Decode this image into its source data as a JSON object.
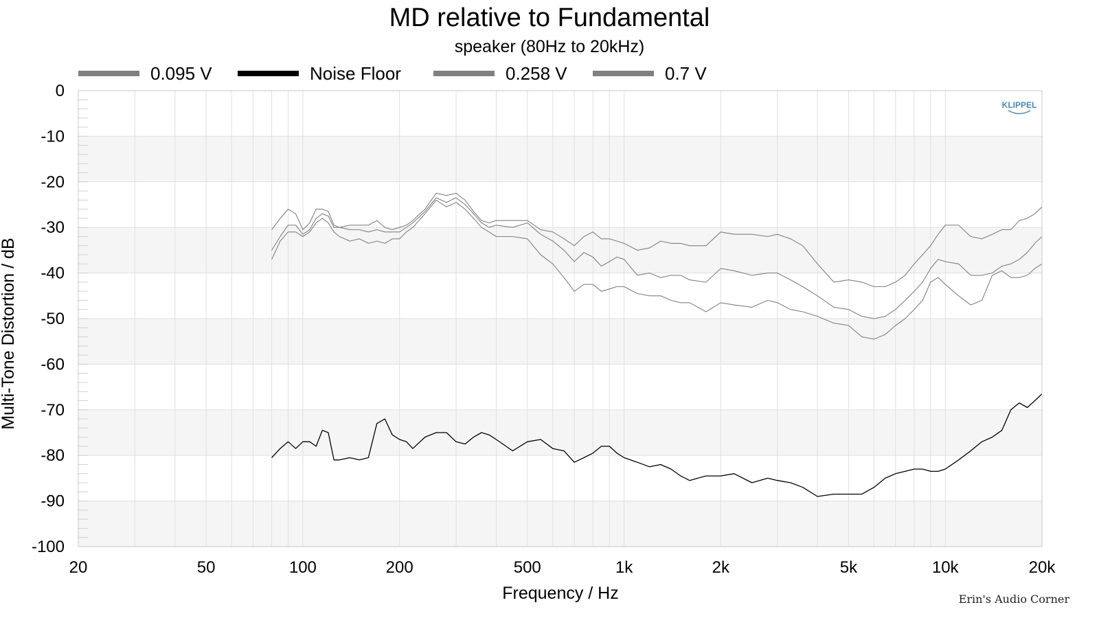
{
  "chart_data": {
    "type": "line",
    "title": "MD relative to Fundamental",
    "subtitle": "speaker (80Hz to 20kHz)",
    "xlabel": "Frequency / Hz",
    "ylabel": "Multi-Tone Distortion / dB",
    "x_scale": "log",
    "xlim": [
      20,
      20000
    ],
    "ylim": [
      -100,
      0
    ],
    "x_ticks": [
      {
        "value": 20,
        "label": "20"
      },
      {
        "value": 50,
        "label": "50"
      },
      {
        "value": 100,
        "label": "100"
      },
      {
        "value": 200,
        "label": "200"
      },
      {
        "value": 500,
        "label": "500"
      },
      {
        "value": 1000,
        "label": "1k"
      },
      {
        "value": 2000,
        "label": "2k"
      },
      {
        "value": 5000,
        "label": "5k"
      },
      {
        "value": 10000,
        "label": "10k"
      },
      {
        "value": 20000,
        "label": "20k"
      }
    ],
    "y_ticks": [
      {
        "value": 0,
        "label": "0"
      },
      {
        "value": -10,
        "label": "-10"
      },
      {
        "value": -20,
        "label": "-20"
      },
      {
        "value": -30,
        "label": "-30"
      },
      {
        "value": -40,
        "label": "-40"
      },
      {
        "value": -50,
        "label": "-50"
      },
      {
        "value": -60,
        "label": "-60"
      },
      {
        "value": -70,
        "label": "-70"
      },
      {
        "value": -80,
        "label": "-80"
      },
      {
        "value": -90,
        "label": "-90"
      },
      {
        "value": -100,
        "label": "-100"
      }
    ],
    "grid": true,
    "legend_position": "top",
    "series": [
      {
        "name": "0.095 V",
        "color": "#808080",
        "x": [
          80,
          85,
          90,
          95,
          100,
          105,
          110,
          115,
          120,
          125,
          130,
          140,
          150,
          160,
          170,
          180,
          190,
          200,
          210,
          220,
          240,
          260,
          280,
          300,
          320,
          340,
          360,
          380,
          400,
          450,
          500,
          550,
          600,
          650,
          700,
          750,
          800,
          850,
          900,
          950,
          1000,
          1100,
          1200,
          1300,
          1400,
          1500,
          1600,
          1800,
          2000,
          2200,
          2500,
          2800,
          3000,
          3300,
          3600,
          4000,
          4500,
          5000,
          5500,
          6000,
          6500,
          7000,
          7500,
          8000,
          8500,
          9000,
          9500,
          10000,
          11000,
          12000,
          13000,
          14000,
          15000,
          16000,
          17000,
          18000,
          19000,
          20000
        ],
        "y": [
          -37,
          -33,
          -31,
          -31,
          -32,
          -31,
          -29,
          -28,
          -29,
          -31,
          -32,
          -33,
          -32.5,
          -33.5,
          -33,
          -33.5,
          -32.5,
          -32.5,
          -31,
          -30,
          -27,
          -24,
          -25.5,
          -24.5,
          -26,
          -28,
          -30,
          -31,
          -32,
          -32,
          -32.5,
          -36,
          -38,
          -41,
          -44,
          -42.5,
          -42.5,
          -44,
          -43.5,
          -43,
          -43,
          -44.5,
          -45,
          -45,
          -46,
          -46.5,
          -46.5,
          -48.5,
          -46.5,
          -47,
          -47.5,
          -46,
          -46.5,
          -48,
          -48.5,
          -49.5,
          -51,
          -51.5,
          -54,
          -54.5,
          -53.5,
          -51.5,
          -50,
          -48,
          -46,
          -42,
          -41,
          -42.5,
          -45,
          -47,
          -46,
          -40.5,
          -39.5,
          -41,
          -41,
          -40.5,
          -39,
          -38
        ]
      },
      {
        "name": "Noise Floor",
        "color": "#000000",
        "x": [
          80,
          85,
          90,
          95,
          100,
          105,
          110,
          115,
          120,
          125,
          130,
          140,
          150,
          160,
          170,
          180,
          190,
          200,
          210,
          220,
          240,
          260,
          280,
          300,
          320,
          340,
          360,
          380,
          400,
          450,
          500,
          550,
          600,
          650,
          700,
          750,
          800,
          850,
          900,
          950,
          1000,
          1100,
          1200,
          1300,
          1400,
          1500,
          1600,
          1800,
          2000,
          2200,
          2500,
          2800,
          3000,
          3300,
          3600,
          4000,
          4500,
          5000,
          5500,
          6000,
          6500,
          7000,
          7500,
          8000,
          8500,
          9000,
          9500,
          10000,
          11000,
          12000,
          13000,
          14000,
          15000,
          16000,
          17000,
          18000,
          19000,
          20000
        ],
        "y": [
          -80.5,
          -78.5,
          -77,
          -78.5,
          -77,
          -77,
          -78,
          -74.5,
          -75,
          -81,
          -81,
          -80.5,
          -81,
          -80.5,
          -73,
          -72,
          -75.5,
          -76.5,
          -77,
          -78.5,
          -76,
          -75,
          -75,
          -77,
          -77.5,
          -76,
          -75,
          -75.5,
          -76.5,
          -79,
          -77,
          -76.5,
          -78.5,
          -79,
          -81.5,
          -80.5,
          -79.5,
          -78,
          -78,
          -79.5,
          -80.5,
          -81.5,
          -82.5,
          -82,
          -83,
          -84.5,
          -85.5,
          -84.5,
          -84.5,
          -84,
          -86,
          -85,
          -85.5,
          -86,
          -87,
          -89,
          -88.5,
          -88.5,
          -88.5,
          -87,
          -85,
          -84,
          -83.5,
          -83,
          -83,
          -83.5,
          -83.5,
          -83,
          -81,
          -79,
          -77,
          -76,
          -74.5,
          -70,
          -68.5,
          -69.5,
          -68,
          -66.5
        ]
      },
      {
        "name": "0.258 V",
        "color": "#808080",
        "x": [
          80,
          85,
          90,
          95,
          100,
          105,
          110,
          115,
          120,
          125,
          130,
          140,
          150,
          160,
          170,
          180,
          190,
          200,
          210,
          220,
          240,
          260,
          280,
          300,
          320,
          340,
          360,
          380,
          400,
          450,
          500,
          550,
          600,
          650,
          700,
          750,
          800,
          850,
          900,
          950,
          1000,
          1100,
          1200,
          1300,
          1400,
          1500,
          1600,
          1800,
          2000,
          2200,
          2500,
          2800,
          3000,
          3300,
          3600,
          4000,
          4500,
          5000,
          5500,
          6000,
          6500,
          7000,
          7500,
          8000,
          8500,
          9000,
          9500,
          10000,
          11000,
          12000,
          13000,
          14000,
          15000,
          16000,
          17000,
          18000,
          19000,
          20000
        ],
        "y": [
          -35,
          -32,
          -29.5,
          -29.5,
          -31.5,
          -30.5,
          -28,
          -27,
          -27.5,
          -30,
          -30,
          -30.5,
          -30.5,
          -31,
          -30.5,
          -31,
          -31,
          -31,
          -30,
          -29,
          -26.5,
          -23.5,
          -24.5,
          -23.5,
          -25,
          -27,
          -29,
          -30,
          -29.5,
          -30,
          -29,
          -31.5,
          -33,
          -35,
          -37.5,
          -35.5,
          -36.5,
          -38.5,
          -37.5,
          -36.5,
          -37,
          -40.5,
          -40,
          -41,
          -40.5,
          -40.5,
          -41.5,
          -42,
          -39,
          -39.5,
          -40.5,
          -40,
          -40,
          -41.5,
          -43,
          -45,
          -47.5,
          -48,
          -49.5,
          -50,
          -49.5,
          -48,
          -46,
          -44,
          -42,
          -39,
          -37,
          -37.5,
          -38,
          -40.5,
          -40.5,
          -40,
          -38.5,
          -38,
          -37,
          -35.5,
          -33.5,
          -32
        ]
      },
      {
        "name": "0.7 V",
        "color": "#808080",
        "x": [
          80,
          85,
          90,
          95,
          100,
          105,
          110,
          115,
          120,
          125,
          130,
          140,
          150,
          160,
          170,
          180,
          190,
          200,
          210,
          220,
          240,
          260,
          280,
          300,
          320,
          340,
          360,
          380,
          400,
          450,
          500,
          550,
          600,
          650,
          700,
          750,
          800,
          850,
          900,
          950,
          1000,
          1100,
          1200,
          1300,
          1400,
          1500,
          1600,
          1800,
          2000,
          2200,
          2500,
          2800,
          3000,
          3300,
          3600,
          4000,
          4500,
          5000,
          5500,
          6000,
          6500,
          7000,
          7500,
          8000,
          8500,
          9000,
          9500,
          10000,
          11000,
          12000,
          13000,
          14000,
          15000,
          16000,
          17000,
          18000,
          19000,
          20000
        ],
        "y": [
          -30.5,
          -28,
          -26,
          -27,
          -30.5,
          -29,
          -26,
          -26,
          -26.5,
          -29.5,
          -30,
          -29.5,
          -29.5,
          -29.5,
          -28.5,
          -30,
          -30.5,
          -30,
          -29.5,
          -28.5,
          -26,
          -22.5,
          -23,
          -22.5,
          -24,
          -26.5,
          -28.5,
          -29,
          -28.5,
          -28.5,
          -28.5,
          -30.5,
          -31,
          -32.5,
          -34,
          -32,
          -31,
          -32.5,
          -32.5,
          -33,
          -33.5,
          -35,
          -34.5,
          -33,
          -33.5,
          -33.5,
          -34,
          -34,
          -31,
          -31.5,
          -31.5,
          -32,
          -31.5,
          -32.5,
          -34,
          -38,
          -42,
          -41.5,
          -42,
          -43,
          -43,
          -42,
          -40.5,
          -38,
          -36,
          -34,
          -31.5,
          -29.5,
          -29.5,
          -32,
          -32.5,
          -31.5,
          -30.5,
          -30.5,
          -28.5,
          -28,
          -27,
          -25.5
        ]
      }
    ],
    "watermark": "KLIPPEL",
    "credit": "Erin's Audio Corner"
  }
}
